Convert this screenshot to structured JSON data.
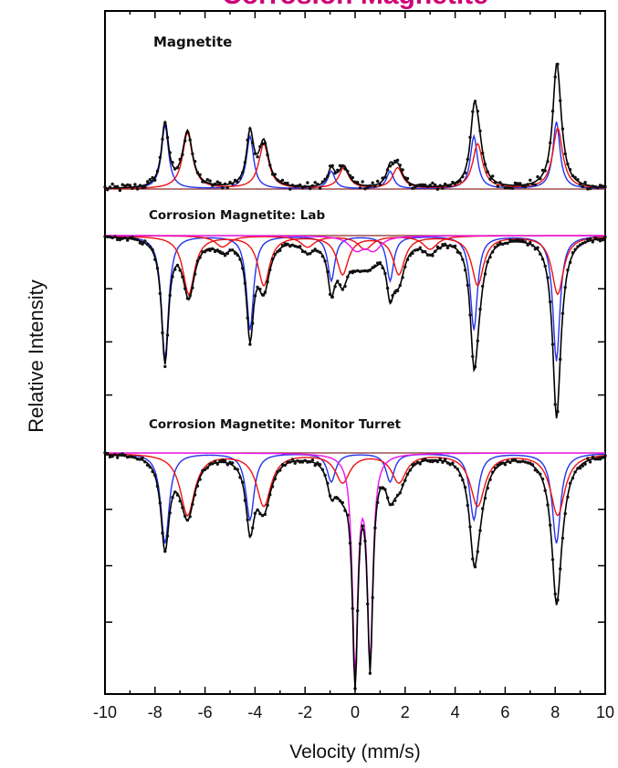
{
  "chart_data": {
    "type": "line",
    "title": "Corrosion Magnetite",
    "xlabel": "Velocity (mm/s)",
    "ylabel": "Relative Intensity",
    "xlim": [
      -10,
      10
    ],
    "x_ticks": [
      "-10",
      "-8",
      "-6",
      "-4",
      "-2",
      "0",
      "2",
      "4",
      "6",
      "8",
      "10"
    ],
    "grid": false,
    "colors": {
      "data": "#111111",
      "fit": "#000000",
      "site_a": "#2233ee",
      "site_b": "#ee1111",
      "paramagnetic": "#ee11ee",
      "title": "#cc0077"
    },
    "panels": [
      {
        "label": "Magnetite",
        "mode": "peaks",
        "components": [
          {
            "color": "site_a",
            "centers": [
              -7.6,
              -4.2,
              -0.95,
              1.4,
              4.75,
              8.05
            ],
            "depths": [
              0.4,
              0.33,
              0.11,
              0.11,
              0.33,
              0.42
            ],
            "width": 0.17
          },
          {
            "color": "site_b",
            "centers": [
              -6.7,
              -3.65,
              -0.45,
              1.7,
              4.9,
              8.1
            ],
            "depths": [
              0.35,
              0.28,
              0.13,
              0.13,
              0.28,
              0.38
            ],
            "width": 0.24
          }
        ]
      },
      {
        "label": "Corrosion Magnetite: Lab",
        "mode": "dips",
        "components": [
          {
            "color": "site_a",
            "centers": [
              -7.6,
              -4.2,
              -0.95,
              1.4,
              4.75,
              8.05
            ],
            "depths": [
              0.55,
              0.42,
              0.2,
              0.2,
              0.42,
              0.56
            ],
            "width": 0.17
          },
          {
            "color": "site_b",
            "centers": [
              -6.65,
              -3.65,
              -0.5,
              1.75,
              4.9,
              8.1
            ],
            "depths": [
              0.26,
              0.22,
              0.17,
              0.17,
              0.22,
              0.26
            ],
            "width": 0.28
          },
          {
            "color": "site_b",
            "centers": [
              -5.3,
              -1.9,
              0.4,
              3.0
            ],
            "depths": [
              0.05,
              0.05,
              0.06,
              0.06
            ],
            "width": 0.35
          },
          {
            "color": "paramagnetic",
            "centers": [
              0.05,
              0.75
            ],
            "depths": [
              0.06,
              0.06
            ],
            "width": 0.35
          }
        ]
      },
      {
        "label": "Corrosion Magnetite: Monitor Turret",
        "mode": "dips",
        "components": [
          {
            "color": "site_a",
            "centers": [
              -7.6,
              -4.2,
              -0.95,
              1.4,
              4.75,
              8.05
            ],
            "depths": [
              0.38,
              0.28,
              0.12,
              0.12,
              0.28,
              0.38
            ],
            "width": 0.2
          },
          {
            "color": "site_b",
            "centers": [
              -6.7,
              -3.65,
              -0.5,
              1.75,
              4.9,
              8.1
            ],
            "depths": [
              0.26,
              0.22,
              0.12,
              0.12,
              0.22,
              0.26
            ],
            "width": 0.35
          },
          {
            "color": "paramagnetic",
            "centers": [
              0.0,
              0.6
            ],
            "depths": [
              0.9,
              0.85
            ],
            "width": 0.13
          }
        ]
      }
    ]
  }
}
